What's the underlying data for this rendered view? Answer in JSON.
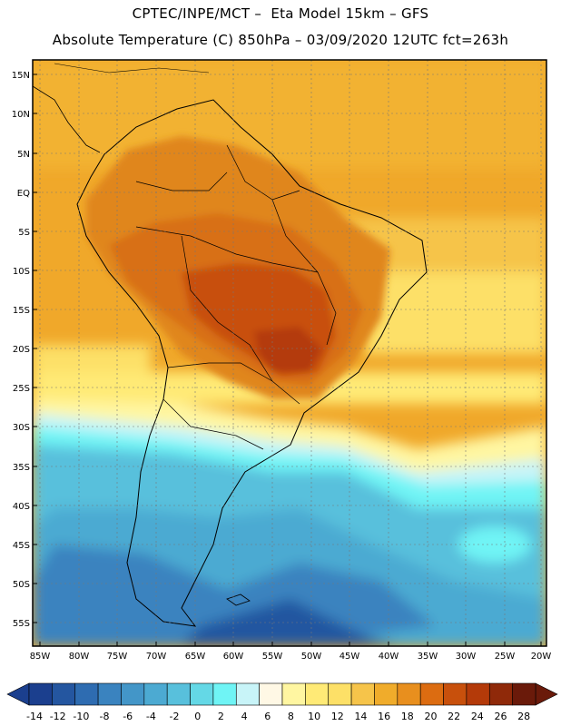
{
  "header": {
    "line1": "CPTEC/INPE/MCT –  Eta Model 15km – GFS",
    "line2": "Absolute Temperature (C) 850hPa – 03/09/2020 12UTC fct=263h"
  },
  "map": {
    "lat_labels": [
      "15N",
      "10N",
      "5N",
      "EQ",
      "5S",
      "10S",
      "15S",
      "20S",
      "25S",
      "30S",
      "35S",
      "40S",
      "45S",
      "50S",
      "55S"
    ],
    "lon_labels": [
      "85W",
      "80W",
      "75W",
      "70W",
      "65W",
      "60W",
      "55W",
      "50W",
      "45W",
      "40W",
      "35W",
      "30W",
      "25W",
      "20W"
    ],
    "region": "South America",
    "colors": {
      "ocean_tropical": "#f0a82a",
      "land_warm": "#e0861f",
      "land_hot": "#d05f12",
      "southern_cold": "#4aaed1",
      "southern_deep": "#2e7ab6",
      "coastline": "#000000"
    }
  },
  "colorbar": {
    "labels": [
      "-14",
      "-12",
      "-10",
      "-8",
      "-6",
      "-4",
      "-2",
      "0",
      "2",
      "4",
      "6",
      "8",
      "10",
      "12",
      "14",
      "16",
      "18",
      "20",
      "22",
      "24",
      "26",
      "28"
    ],
    "colors": [
      "#1b3f8e",
      "#2456a0",
      "#2e6cb1",
      "#3a83bf",
      "#4396c8",
      "#4caad2",
      "#58c0dc",
      "#64d8e6",
      "#6ff4f5",
      "#c8f4f8",
      "#fff8e5",
      "#fff6a1",
      "#ffea76",
      "#fde067",
      "#f6c44a",
      "#f0ac2b",
      "#e88f1e",
      "#dc6c11",
      "#c8500c",
      "#b43a09",
      "#8f2909",
      "#6a1a0a"
    ],
    "under_color": "#1b3f8e",
    "over_color": "#6a1a0a"
  }
}
